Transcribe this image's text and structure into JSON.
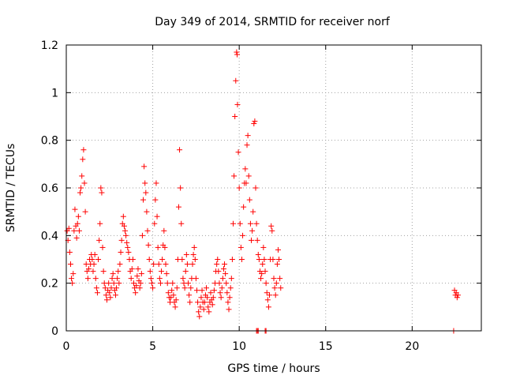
{
  "chart_data": {
    "type": "scatter",
    "title": "Day 349 of 2014, SRMTID for receiver norf",
    "xlabel": "GPS time / hours",
    "ylabel": "SRMTID / TECUs",
    "xlim": [
      0,
      24
    ],
    "ylim": [
      0,
      1.2
    ],
    "x_ticks": [
      0,
      5,
      10,
      15,
      20
    ],
    "x_tick_labels": [
      "0",
      "5",
      "10",
      "15",
      "20"
    ],
    "y_ticks": [
      0,
      0.2,
      0.4,
      0.6,
      0.8,
      1.0,
      1.2
    ],
    "y_tick_labels": [
      "0",
      "0.2",
      "0.4",
      "0.6",
      "0.8",
      "1",
      "1.2"
    ],
    "grid": true,
    "marker": "plus",
    "marker_color": "#ff0000",
    "series": [
      {
        "name": "SRMTID",
        "points": [
          [
            0.05,
            0.42
          ],
          [
            0.1,
            0.38
          ],
          [
            0.15,
            0.43
          ],
          [
            0.2,
            0.33
          ],
          [
            0.25,
            0.28
          ],
          [
            0.3,
            0.22
          ],
          [
            0.35,
            0.2
          ],
          [
            0.4,
            0.24
          ],
          [
            0.45,
            0.42
          ],
          [
            0.5,
            0.51
          ],
          [
            0.55,
            0.44
          ],
          [
            0.6,
            0.39
          ],
          [
            0.65,
            0.45
          ],
          [
            0.7,
            0.48
          ],
          [
            0.75,
            0.42
          ],
          [
            0.8,
            0.58
          ],
          [
            0.85,
            0.6
          ],
          [
            0.9,
            0.65
          ],
          [
            0.95,
            0.72
          ],
          [
            1.0,
            0.76
          ],
          [
            1.05,
            0.62
          ],
          [
            1.1,
            0.5
          ],
          [
            1.15,
            0.28
          ],
          [
            1.2,
            0.25
          ],
          [
            1.25,
            0.22
          ],
          [
            1.3,
            0.26
          ],
          [
            1.35,
            0.3
          ],
          [
            1.4,
            0.28
          ],
          [
            1.45,
            0.32
          ],
          [
            1.5,
            0.3
          ],
          [
            1.55,
            0.25
          ],
          [
            1.6,
            0.28
          ],
          [
            1.65,
            0.32
          ],
          [
            1.7,
            0.22
          ],
          [
            1.75,
            0.18
          ],
          [
            1.8,
            0.16
          ],
          [
            1.85,
            0.3
          ],
          [
            1.9,
            0.38
          ],
          [
            1.95,
            0.45
          ],
          [
            2.0,
            0.6
          ],
          [
            2.05,
            0.58
          ],
          [
            2.1,
            0.35
          ],
          [
            2.15,
            0.25
          ],
          [
            2.2,
            0.2
          ],
          [
            2.25,
            0.18
          ],
          [
            2.3,
            0.15
          ],
          [
            2.35,
            0.13
          ],
          [
            2.4,
            0.17
          ],
          [
            2.45,
            0.2
          ],
          [
            2.5,
            0.16
          ],
          [
            2.55,
            0.14
          ],
          [
            2.6,
            0.18
          ],
          [
            2.65,
            0.22
          ],
          [
            2.7,
            0.24
          ],
          [
            2.75,
            0.2
          ],
          [
            2.8,
            0.17
          ],
          [
            2.85,
            0.15
          ],
          [
            2.9,
            0.18
          ],
          [
            2.95,
            0.22
          ],
          [
            3.0,
            0.25
          ],
          [
            3.05,
            0.2
          ],
          [
            3.1,
            0.28
          ],
          [
            3.15,
            0.33
          ],
          [
            3.2,
            0.38
          ],
          [
            3.25,
            0.45
          ],
          [
            3.3,
            0.48
          ],
          [
            3.35,
            0.44
          ],
          [
            3.4,
            0.42
          ],
          [
            3.45,
            0.4
          ],
          [
            3.5,
            0.37
          ],
          [
            3.55,
            0.35
          ],
          [
            3.6,
            0.33
          ],
          [
            3.65,
            0.3
          ],
          [
            3.7,
            0.25
          ],
          [
            3.75,
            0.22
          ],
          [
            3.8,
            0.26
          ],
          [
            3.85,
            0.3
          ],
          [
            3.9,
            0.2
          ],
          [
            3.95,
            0.18
          ],
          [
            4.0,
            0.16
          ],
          [
            4.05,
            0.19
          ],
          [
            4.1,
            0.23
          ],
          [
            4.15,
            0.26
          ],
          [
            4.2,
            0.21
          ],
          [
            4.25,
            0.18
          ],
          [
            4.3,
            0.2
          ],
          [
            4.35,
            0.24
          ],
          [
            4.4,
            0.4
          ],
          [
            4.45,
            0.55
          ],
          [
            4.5,
            0.69
          ],
          [
            4.55,
            0.62
          ],
          [
            4.6,
            0.58
          ],
          [
            4.65,
            0.5
          ],
          [
            4.7,
            0.42
          ],
          [
            4.75,
            0.36
          ],
          [
            4.8,
            0.3
          ],
          [
            4.85,
            0.25
          ],
          [
            4.9,
            0.22
          ],
          [
            4.95,
            0.2
          ],
          [
            5.0,
            0.18
          ],
          [
            5.05,
            0.28
          ],
          [
            5.1,
            0.45
          ],
          [
            5.15,
            0.55
          ],
          [
            5.2,
            0.62
          ],
          [
            5.25,
            0.48
          ],
          [
            5.3,
            0.35
          ],
          [
            5.35,
            0.28
          ],
          [
            5.4,
            0.22
          ],
          [
            5.45,
            0.2
          ],
          [
            5.5,
            0.25
          ],
          [
            5.55,
            0.3
          ],
          [
            5.6,
            0.36
          ],
          [
            5.65,
            0.42
          ],
          [
            5.7,
            0.35
          ],
          [
            5.75,
            0.28
          ],
          [
            5.8,
            0.24
          ],
          [
            5.85,
            0.2
          ],
          [
            5.9,
            0.16
          ],
          [
            5.95,
            0.14
          ],
          [
            6.0,
            0.12
          ],
          [
            6.05,
            0.14
          ],
          [
            6.1,
            0.17
          ],
          [
            6.15,
            0.2
          ],
          [
            6.2,
            0.15
          ],
          [
            6.25,
            0.12
          ],
          [
            6.3,
            0.1
          ],
          [
            6.35,
            0.13
          ],
          [
            6.4,
            0.18
          ],
          [
            6.45,
            0.3
          ],
          [
            6.5,
            0.52
          ],
          [
            6.55,
            0.76
          ],
          [
            6.6,
            0.6
          ],
          [
            6.65,
            0.45
          ],
          [
            6.7,
            0.3
          ],
          [
            6.75,
            0.22
          ],
          [
            6.8,
            0.2
          ],
          [
            6.85,
            0.18
          ],
          [
            6.9,
            0.25
          ],
          [
            6.95,
            0.32
          ],
          [
            7.0,
            0.28
          ],
          [
            7.05,
            0.2
          ],
          [
            7.1,
            0.15
          ],
          [
            7.15,
            0.12
          ],
          [
            7.2,
            0.18
          ],
          [
            7.25,
            0.22
          ],
          [
            7.3,
            0.28
          ],
          [
            7.35,
            0.32
          ],
          [
            7.4,
            0.35
          ],
          [
            7.45,
            0.3
          ],
          [
            7.5,
            0.22
          ],
          [
            7.55,
            0.17
          ],
          [
            7.6,
            0.12
          ],
          [
            7.65,
            0.08
          ],
          [
            7.7,
            0.06
          ],
          [
            7.75,
            0.1
          ],
          [
            7.8,
            0.14
          ],
          [
            7.85,
            0.17
          ],
          [
            7.9,
            0.12
          ],
          [
            7.95,
            0.09
          ],
          [
            8.0,
            0.12
          ],
          [
            8.05,
            0.15
          ],
          [
            8.1,
            0.18
          ],
          [
            8.15,
            0.14
          ],
          [
            8.2,
            0.1
          ],
          [
            8.25,
            0.08
          ],
          [
            8.3,
            0.12
          ],
          [
            8.35,
            0.16
          ],
          [
            8.4,
            0.13
          ],
          [
            8.45,
            0.11
          ],
          [
            8.5,
            0.14
          ],
          [
            8.55,
            0.17
          ],
          [
            8.6,
            0.2
          ],
          [
            8.65,
            0.25
          ],
          [
            8.7,
            0.28
          ],
          [
            8.75,
            0.3
          ],
          [
            8.8,
            0.25
          ],
          [
            8.85,
            0.2
          ],
          [
            8.9,
            0.16
          ],
          [
            8.95,
            0.14
          ],
          [
            9.0,
            0.18
          ],
          [
            9.05,
            0.22
          ],
          [
            9.1,
            0.26
          ],
          [
            9.15,
            0.28
          ],
          [
            9.2,
            0.24
          ],
          [
            9.25,
            0.2
          ],
          [
            9.3,
            0.16
          ],
          [
            9.35,
            0.12
          ],
          [
            9.4,
            0.09
          ],
          [
            9.45,
            0.14
          ],
          [
            9.5,
            0.18
          ],
          [
            9.55,
            0.22
          ],
          [
            9.6,
            0.3
          ],
          [
            9.65,
            0.45
          ],
          [
            9.7,
            0.65
          ],
          [
            9.75,
            0.9
          ],
          [
            9.8,
            1.05
          ],
          [
            9.85,
            1.17
          ],
          [
            9.88,
            1.16
          ],
          [
            9.9,
            0.95
          ],
          [
            9.95,
            0.75
          ],
          [
            10.0,
            0.6
          ],
          [
            10.05,
            0.45
          ],
          [
            10.1,
            0.35
          ],
          [
            10.15,
            0.3
          ],
          [
            10.2,
            0.4
          ],
          [
            10.25,
            0.52
          ],
          [
            10.3,
            0.62
          ],
          [
            10.35,
            0.68
          ],
          [
            10.4,
            0.62
          ],
          [
            10.45,
            0.78
          ],
          [
            10.5,
            0.82
          ],
          [
            10.55,
            0.65
          ],
          [
            10.6,
            0.55
          ],
          [
            10.65,
            0.45
          ],
          [
            10.7,
            0.38
          ],
          [
            10.75,
            0.42
          ],
          [
            10.8,
            0.5
          ],
          [
            10.85,
            0.87
          ],
          [
            10.9,
            0.88
          ],
          [
            10.95,
            0.6
          ],
          [
            11.0,
            0.45
          ],
          [
            11.05,
            0.38
          ],
          [
            11.1,
            0.32
          ],
          [
            11.15,
            0.3
          ],
          [
            11.2,
            0.25
          ],
          [
            11.25,
            0.22
          ],
          [
            11.3,
            0.24
          ],
          [
            11.35,
            0.28
          ],
          [
            11.4,
            0.35
          ],
          [
            11.45,
            0.3
          ],
          [
            11.5,
            0.25
          ],
          [
            11.55,
            0.2
          ],
          [
            11.6,
            0.16
          ],
          [
            11.65,
            0.13
          ],
          [
            11.7,
            0.1
          ],
          [
            11.75,
            0.15
          ],
          [
            11.8,
            0.3
          ],
          [
            11.85,
            0.44
          ],
          [
            11.9,
            0.42
          ],
          [
            11.95,
            0.3
          ],
          [
            12.0,
            0.22
          ],
          [
            12.05,
            0.18
          ],
          [
            12.1,
            0.15
          ],
          [
            12.15,
            0.2
          ],
          [
            12.2,
            0.28
          ],
          [
            12.25,
            0.34
          ],
          [
            12.3,
            0.3
          ],
          [
            12.35,
            0.22
          ],
          [
            12.4,
            0.18
          ],
          [
            11.0,
            0.0
          ],
          [
            11.05,
            0.0
          ],
          [
            11.1,
            0.0
          ],
          [
            11.5,
            0.0
          ],
          [
            11.55,
            0.0
          ],
          [
            22.4,
            0.0
          ],
          [
            22.45,
            0.17
          ],
          [
            22.5,
            0.15
          ],
          [
            22.55,
            0.16
          ],
          [
            22.6,
            0.14
          ],
          [
            22.65,
            0.15
          ]
        ]
      }
    ]
  }
}
